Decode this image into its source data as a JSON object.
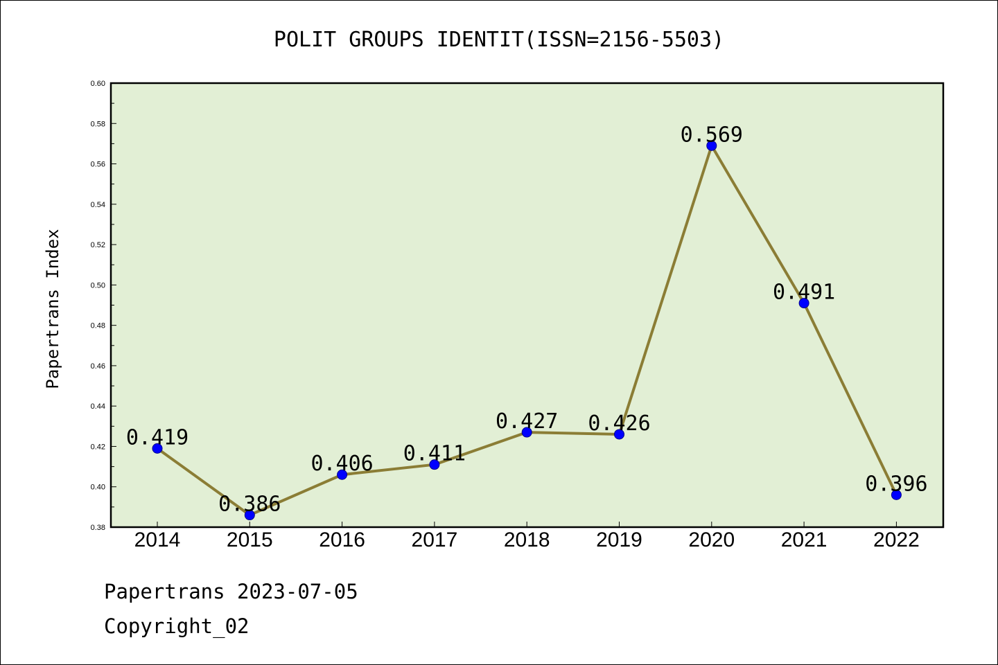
{
  "colors": {
    "plot_background": "#e2efd5",
    "line": "#8b7d35",
    "marker_fill": "#0000ff",
    "marker_edge": "#00008b",
    "text": "#000000"
  },
  "footer": {
    "line1": "Papertrans 2023-07-05",
    "line2": "Copyright_02"
  },
  "chart_data": {
    "type": "line",
    "title": "POLIT GROUPS IDENTIT(ISSN=2156-5503)",
    "xlabel": "",
    "ylabel": "Papertrans Index",
    "categories": [
      "2014",
      "2015",
      "2016",
      "2017",
      "2018",
      "2019",
      "2020",
      "2021",
      "2022"
    ],
    "values": [
      0.419,
      0.386,
      0.406,
      0.411,
      0.427,
      0.426,
      0.569,
      0.491,
      0.396
    ],
    "data_labels": [
      "0.419",
      "0.386",
      "0.406",
      "0.411",
      "0.427",
      "0.426",
      "0.569",
      "0.491",
      "0.396"
    ],
    "ylim": [
      0.38,
      0.6
    ],
    "yticks": [
      "0.38",
      "0.40",
      "0.42",
      "0.44",
      "0.46",
      "0.48",
      "0.50",
      "0.52",
      "0.54",
      "0.56",
      "0.58",
      "0.60"
    ],
    "grid": false,
    "legend": "none"
  }
}
